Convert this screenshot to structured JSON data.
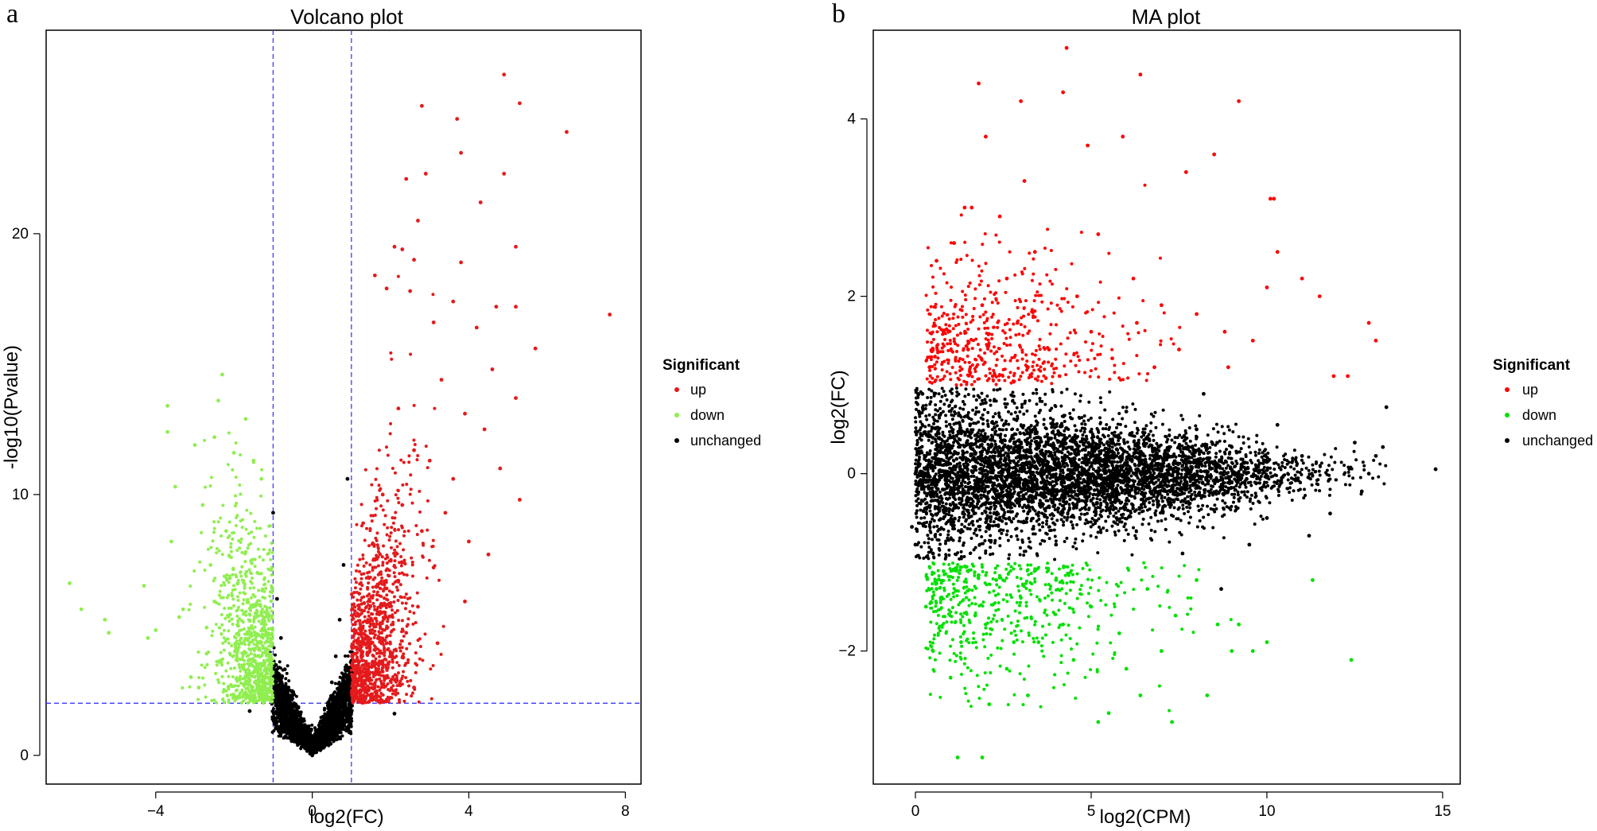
{
  "chart_data": [
    {
      "panel_label": "a",
      "type": "scatter",
      "title": "Volcano plot",
      "xlabel": "log2(FC)",
      "ylabel": "-log10(Pvalue)",
      "xlim": [
        -6.8,
        8.4
      ],
      "ylim": [
        -1.1,
        27.8
      ],
      "xticks": [
        -4,
        0,
        4,
        8
      ],
      "xtick_labels": [
        "−4",
        "0",
        "4",
        "8"
      ],
      "yticks": [
        0,
        10,
        20
      ],
      "ytick_labels": [
        "0",
        "10",
        "20"
      ],
      "thresholds": {
        "log2fc": [
          -1,
          1
        ],
        "neg_log10_p": 2
      },
      "legend": {
        "title": "Significant",
        "position": "right",
        "entries": [
          {
            "label": "up",
            "color": "#e41a1c"
          },
          {
            "label": "down",
            "color": "#90ee50"
          },
          {
            "label": "unchanged",
            "color": "#000000"
          }
        ]
      },
      "series": [
        {
          "name": "up",
          "color": "#e41a1c",
          "points": [
            [
              4.9,
              26.1
            ],
            [
              5.3,
              25.0
            ],
            [
              6.5,
              23.9
            ],
            [
              2.8,
              24.9
            ],
            [
              3.7,
              24.4
            ],
            [
              3.8,
              23.1
            ],
            [
              4.9,
              22.3
            ],
            [
              2.9,
              22.3
            ],
            [
              2.4,
              22.1
            ],
            [
              4.3,
              21.2
            ],
            [
              2.7,
              20.5
            ],
            [
              5.2,
              19.5
            ],
            [
              2.1,
              19.5
            ],
            [
              2.3,
              19.4
            ],
            [
              2.6,
              19.0
            ],
            [
              3.8,
              18.9
            ],
            [
              7.6,
              16.9
            ],
            [
              3.6,
              17.4
            ],
            [
              4.7,
              17.2
            ],
            [
              5.2,
              17.2
            ],
            [
              2.5,
              17.8
            ],
            [
              3.1,
              16.6
            ],
            [
              1.6,
              18.4
            ],
            [
              1.9,
              17.9
            ],
            [
              4.2,
              16.4
            ],
            [
              5.7,
              15.6
            ],
            [
              4.6,
              14.8
            ],
            [
              3.3,
              14.4
            ],
            [
              2.2,
              13.3
            ],
            [
              3.9,
              13.1
            ],
            [
              5.2,
              13.7
            ],
            [
              4.4,
              12.5
            ],
            [
              2.6,
              11.7
            ],
            [
              3.0,
              11.3
            ],
            [
              4.8,
              11.0
            ],
            [
              5.3,
              9.8
            ],
            [
              3.4,
              9.3
            ],
            [
              2.8,
              8.6
            ],
            [
              4.0,
              8.2
            ],
            [
              1.3,
              8.9
            ],
            [
              1.8,
              10.0
            ],
            [
              2.3,
              9.6
            ],
            [
              3.6,
              10.6
            ],
            [
              4.5,
              7.7
            ],
            [
              3.1,
              7.2
            ],
            [
              2.2,
              6.7
            ],
            [
              1.6,
              7.5
            ],
            [
              1.2,
              6.2
            ],
            [
              2.7,
              5.7
            ],
            [
              3.9,
              5.9
            ],
            [
              1.4,
              5.1
            ],
            [
              1.9,
              4.3
            ],
            [
              2.4,
              4.7
            ],
            [
              1.7,
              3.1
            ],
            [
              1.2,
              3.6
            ],
            [
              2.1,
              2.9
            ],
            [
              1.3,
              2.3
            ],
            [
              2.6,
              2.6
            ],
            [
              1.5,
              2.2
            ],
            [
              1.1,
              2.4
            ],
            [
              3.2,
              4.3
            ],
            [
              1.9,
              6.4
            ]
          ]
        },
        {
          "name": "down",
          "color": "#90ee50",
          "points": [
            [
              -2.3,
              14.6
            ],
            [
              -3.7,
              13.4
            ],
            [
              -2.4,
              13.6
            ],
            [
              -3.7,
              12.4
            ],
            [
              -1.7,
              12.9
            ],
            [
              -2.5,
              12.2
            ],
            [
              -3.0,
              11.9
            ],
            [
              -2.0,
              11.6
            ],
            [
              -1.5,
              11.3
            ],
            [
              -3.5,
              10.3
            ],
            [
              -1.3,
              10.6
            ],
            [
              -2.8,
              9.6
            ],
            [
              -2.2,
              8.6
            ],
            [
              -3.6,
              8.2
            ],
            [
              -1.7,
              7.8
            ],
            [
              -2.6,
              7.3
            ],
            [
              -1.4,
              7.0
            ],
            [
              -6.2,
              6.6
            ],
            [
              -4.3,
              6.5
            ],
            [
              -3.3,
              5.6
            ],
            [
              -2.1,
              5.4
            ],
            [
              -5.9,
              5.6
            ],
            [
              -5.3,
              5.2
            ],
            [
              -3.4,
              5.3
            ],
            [
              -2.7,
              4.9
            ],
            [
              -5.2,
              4.7
            ],
            [
              -4.0,
              4.8
            ],
            [
              -4.2,
              4.5
            ],
            [
              -1.8,
              4.3
            ],
            [
              -2.4,
              3.6
            ],
            [
              -1.4,
              3.4
            ],
            [
              -2.9,
              2.6
            ],
            [
              -2.0,
              2.3
            ],
            [
              -1.3,
              2.2
            ],
            [
              -1.6,
              2.9
            ],
            [
              -2.5,
              5.9
            ],
            [
              -1.9,
              6.6
            ],
            [
              -2.7,
              3.9
            ],
            [
              -3.1,
              3.0
            ]
          ]
        },
        {
          "name": "unchanged",
          "color": "#000000",
          "points": [
            [
              0.9,
              10.6
            ],
            [
              -1.0,
              9.3
            ],
            [
              0.8,
              7.3
            ],
            [
              -0.9,
              6.0
            ],
            [
              0.7,
              5.2
            ],
            [
              -0.8,
              4.5
            ],
            [
              0.6,
              3.8
            ],
            [
              -0.7,
              3.3
            ],
            [
              0.5,
              2.8
            ],
            [
              -0.5,
              2.3
            ],
            [
              0.4,
              1.9
            ],
            [
              -0.4,
              1.6
            ],
            [
              0.3,
              1.2
            ],
            [
              -0.3,
              0.9
            ],
            [
              0.2,
              0.6
            ],
            [
              -0.2,
              0.4
            ],
            [
              0.1,
              0.2
            ],
            [
              0.0,
              0.0
            ],
            [
              -1.6,
              1.7
            ],
            [
              2.1,
              1.6
            ],
            [
              -0.2,
              0.5
            ]
          ]
        }
      ]
    },
    {
      "panel_label": "b",
      "type": "scatter",
      "title": "MA plot",
      "xlabel": "log2(CPM)",
      "ylabel": "log2(FC)",
      "xlim": [
        -1.2,
        15.5
      ],
      "ylim": [
        -3.5,
        5.0
      ],
      "xticks": [
        0,
        5,
        10,
        15
      ],
      "xtick_labels": [
        "0",
        "5",
        "10",
        "15"
      ],
      "yticks": [
        -2,
        0,
        2,
        4
      ],
      "ytick_labels": [
        "−2",
        "0",
        "2",
        "4"
      ],
      "legend": {
        "title": "Significant",
        "position": "right",
        "entries": [
          {
            "label": "up",
            "color": "#ff0000"
          },
          {
            "label": "down",
            "color": "#00e000"
          },
          {
            "label": "unchanged",
            "color": "#000000"
          }
        ]
      },
      "series": [
        {
          "name": "up",
          "color": "#ff0000",
          "points": [
            [
              4.3,
              4.8
            ],
            [
              6.4,
              4.5
            ],
            [
              1.8,
              4.4
            ],
            [
              4.2,
              4.3
            ],
            [
              3.0,
              4.2
            ],
            [
              9.2,
              4.2
            ],
            [
              4.9,
              3.7
            ],
            [
              5.9,
              3.8
            ],
            [
              2.0,
              3.8
            ],
            [
              7.7,
              3.4
            ],
            [
              8.5,
              3.6
            ],
            [
              10.1,
              3.1
            ],
            [
              10.2,
              3.1
            ],
            [
              1.4,
              3.0
            ],
            [
              1.6,
              3.0
            ],
            [
              10.3,
              2.5
            ],
            [
              12.9,
              1.7
            ],
            [
              13.1,
              1.5
            ],
            [
              11.5,
              2.0
            ],
            [
              11.0,
              2.2
            ],
            [
              10.0,
              2.1
            ],
            [
              9.6,
              1.5
            ],
            [
              8.8,
              1.6
            ],
            [
              11.9,
              1.1
            ],
            [
              12.3,
              1.1
            ],
            [
              0.4,
              1.2
            ],
            [
              0.6,
              2.4
            ],
            [
              1.1,
              2.6
            ],
            [
              2.4,
              2.9
            ],
            [
              3.4,
              2.5
            ],
            [
              5.2,
              2.7
            ],
            [
              6.2,
              2.2
            ],
            [
              7.0,
              1.9
            ],
            [
              8.0,
              1.8
            ],
            [
              4.6,
              2.0
            ],
            [
              2.9,
              1.7
            ],
            [
              1.9,
              1.9
            ],
            [
              0.8,
              1.6
            ],
            [
              3.8,
              1.4
            ],
            [
              5.6,
              1.3
            ],
            [
              6.8,
              1.2
            ],
            [
              8.9,
              1.2
            ],
            [
              2.2,
              1.1
            ],
            [
              4.1,
              1.1
            ],
            [
              1.5,
              1.4
            ],
            [
              7.5,
              1.4
            ],
            [
              3.1,
              3.3
            ],
            [
              2.6,
              2.2
            ],
            [
              5.0,
              1.6
            ],
            [
              6.3,
              1.7
            ]
          ]
        },
        {
          "name": "down",
          "color": "#00e000",
          "points": [
            [
              1.2,
              -3.2
            ],
            [
              1.9,
              -3.2
            ],
            [
              5.2,
              -2.8
            ],
            [
              5.5,
              -2.7
            ],
            [
              7.3,
              -2.8
            ],
            [
              8.3,
              -2.5
            ],
            [
              6.4,
              -2.5
            ],
            [
              2.1,
              -2.6
            ],
            [
              12.4,
              -2.1
            ],
            [
              11.3,
              -1.2
            ],
            [
              10.0,
              -1.9
            ],
            [
              9.6,
              -2.0
            ],
            [
              9.2,
              -1.7
            ],
            [
              9.0,
              -2.0
            ],
            [
              8.6,
              -1.7
            ],
            [
              0.3,
              -1.5
            ],
            [
              0.5,
              -2.0
            ],
            [
              1.0,
              -2.3
            ],
            [
              1.5,
              -1.1
            ],
            [
              2.0,
              -1.7
            ],
            [
              2.6,
              -2.2
            ],
            [
              3.0,
              -1.4
            ],
            [
              3.5,
              -1.9
            ],
            [
              4.0,
              -1.2
            ],
            [
              4.5,
              -2.1
            ],
            [
              5.0,
              -1.5
            ],
            [
              5.8,
              -1.8
            ],
            [
              6.6,
              -1.3
            ],
            [
              7.4,
              -1.6
            ],
            [
              8.0,
              -1.2
            ],
            [
              0.8,
              -1.1
            ],
            [
              1.7,
              -1.6
            ],
            [
              2.3,
              -1.2
            ],
            [
              3.2,
              -2.5
            ],
            [
              4.2,
              -1.7
            ],
            [
              6.0,
              -2.2
            ],
            [
              7.0,
              -2.0
            ],
            [
              0.6,
              -1.3
            ],
            [
              1.3,
              -1.9
            ],
            [
              2.8,
              -1.9
            ]
          ]
        },
        {
          "name": "unchanged",
          "color": "#000000",
          "points": [
            [
              14.8,
              0.05
            ],
            [
              13.4,
              0.75
            ],
            [
              13.3,
              0.3
            ],
            [
              13.1,
              0.2
            ],
            [
              12.9,
              0.0
            ],
            [
              12.7,
              -0.2
            ],
            [
              12.5,
              0.35
            ],
            [
              11.8,
              -0.45
            ],
            [
              11.2,
              -0.7
            ],
            [
              10.3,
              0.55
            ],
            [
              9.5,
              -0.8
            ],
            [
              8.7,
              -1.3
            ],
            [
              8.2,
              0.9
            ],
            [
              7.6,
              -0.9
            ],
            [
              0.0,
              0.0
            ],
            [
              -0.1,
              -0.6
            ],
            [
              0.1,
              0.7
            ],
            [
              0.0,
              -0.8
            ],
            [
              0.2,
              0.9
            ],
            [
              0.5,
              -0.9
            ],
            [
              2.0,
              0.8
            ],
            [
              4.0,
              -0.8
            ],
            [
              6.0,
              0.7
            ],
            [
              8.0,
              0.5
            ],
            [
              10.0,
              -0.5
            ],
            [
              3.0,
              0.2
            ],
            [
              5.0,
              -0.3
            ],
            [
              7.0,
              0.1
            ],
            [
              9.0,
              0.3
            ],
            [
              11.0,
              0.2
            ]
          ]
        }
      ]
    }
  ]
}
